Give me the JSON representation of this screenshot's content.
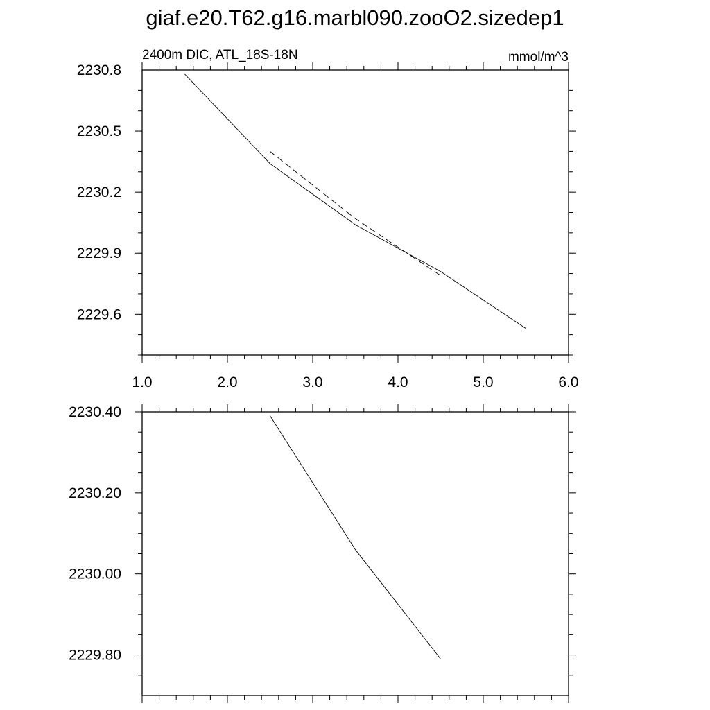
{
  "title": "giaf.e20.T62.g16.marbl090.zooO2.sizedep1",
  "chart_data": [
    {
      "type": "line",
      "title": "",
      "subtitle_left": "2400m DIC, ATL_18S-18N",
      "subtitle_right": "mmol/m^3",
      "xlim": [
        1.0,
        6.0
      ],
      "ylim": [
        2229.4,
        2230.8
      ],
      "xticks": [
        1.0,
        2.0,
        3.0,
        4.0,
        5.0,
        6.0
      ],
      "xtick_labels": [
        "1.0",
        "2.0",
        "3.0",
        "4.0",
        "5.0",
        "6.0"
      ],
      "yticks": [
        2229.6,
        2229.9,
        2230.2,
        2230.5,
        2230.8
      ],
      "ytick_labels": [
        "2229.6",
        "2229.9",
        "2230.2",
        "2230.5",
        "2230.8"
      ],
      "grid": false,
      "series": [
        {
          "style": "solid",
          "x": [
            1.5,
            2.5,
            3.5,
            4.5,
            5.5
          ],
          "y": [
            2230.78,
            2230.34,
            2230.04,
            2229.81,
            2229.53
          ]
        },
        {
          "style": "dashed",
          "x": [
            2.5,
            3.5,
            4.5
          ],
          "y": [
            2230.4,
            2230.07,
            2229.79
          ]
        }
      ]
    },
    {
      "type": "line",
      "title": "",
      "xlim": [
        1.0,
        6.0
      ],
      "ylim": [
        2229.7,
        2230.4
      ],
      "yticks": [
        2229.8,
        2230.0,
        2230.2,
        2230.4
      ],
      "ytick_labels": [
        "2229.80",
        "2230.00",
        "2230.20",
        "2230.40"
      ],
      "grid": false,
      "series": [
        {
          "style": "solid",
          "x": [
            2.5,
            3.5,
            4.5
          ],
          "y": [
            2230.39,
            2230.06,
            2229.79
          ]
        }
      ]
    }
  ]
}
